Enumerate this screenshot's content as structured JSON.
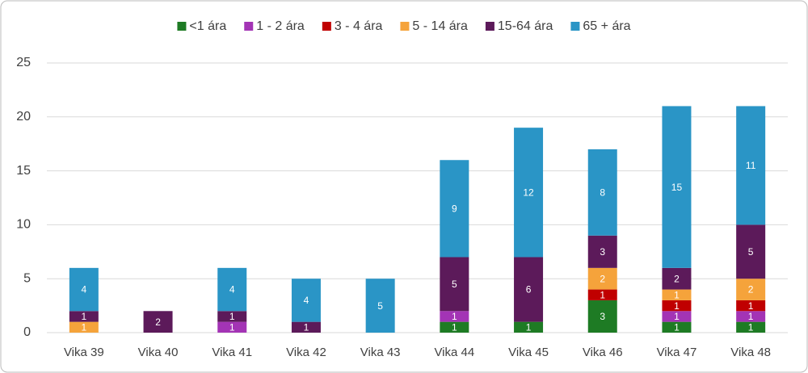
{
  "chart_data": {
    "type": "stacked_bar",
    "categories": [
      "Vika 39",
      "Vika 40",
      "Vika 41",
      "Vika 42",
      "Vika 43",
      "Vika 44",
      "Vika 45",
      "Vika 46",
      "Vika 47",
      "Vika 48"
    ],
    "series": [
      {
        "name": "<1 ára",
        "color": "#1e7b24",
        "values": [
          0,
          0,
          0,
          0,
          0,
          1,
          1,
          3,
          1,
          1
        ]
      },
      {
        "name": "1 - 2 ára",
        "color": "#a334b5",
        "values": [
          0,
          0,
          1,
          0,
          0,
          1,
          0,
          0,
          1,
          1
        ]
      },
      {
        "name": "3 - 4 ára",
        "color": "#c00000",
        "values": [
          0,
          0,
          0,
          0,
          0,
          0,
          0,
          1,
          1,
          1
        ]
      },
      {
        "name": "5 - 14 ára",
        "color": "#f5a33b",
        "values": [
          1,
          0,
          0,
          0,
          0,
          0,
          0,
          2,
          1,
          2
        ]
      },
      {
        "name": "15-64 ára",
        "color": "#5c1a5a",
        "values": [
          1,
          2,
          1,
          1,
          0,
          5,
          6,
          3,
          2,
          5
        ]
      },
      {
        "name": "65 + ára",
        "color": "#2a95c6",
        "values": [
          4,
          0,
          4,
          4,
          5,
          9,
          12,
          8,
          15,
          11
        ]
      }
    ],
    "ylim": [
      0,
      25
    ],
    "yticks": [
      0,
      5,
      10,
      15,
      20,
      25
    ],
    "grid": true,
    "legend": "top"
  }
}
